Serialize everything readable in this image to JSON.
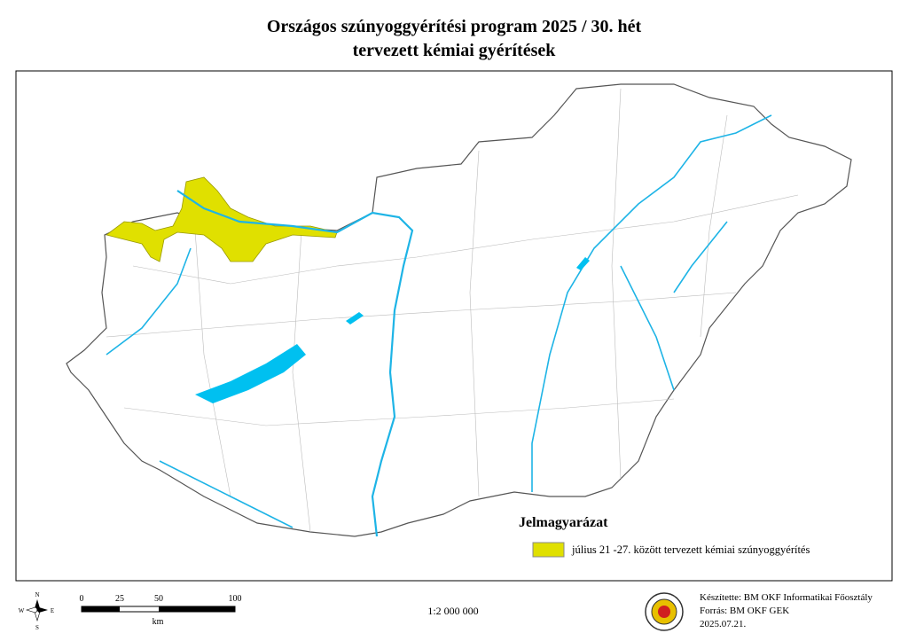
{
  "title": {
    "line1": "Országos szúnyoggyérítési program 2025 / 30. hét",
    "line2": "tervezett kémiai gyérítések"
  },
  "legend": {
    "title": "Jelmagyarázat",
    "items": [
      "július 21 -27. között tervezett kémiai szúnyoggyérítés"
    ]
  },
  "scale_bar": {
    "labels": [
      "0",
      "25",
      "50",
      "100"
    ],
    "unit": "km"
  },
  "scale": "1:2 000 000",
  "compass": {
    "north": "N",
    "east": "E",
    "south": "S",
    "west": "W"
  },
  "credits": [
    "Készítette: BM OKF Informatikai Főosztály",
    "Forrás: BM OKF GEK",
    "2025.07.21."
  ]
}
